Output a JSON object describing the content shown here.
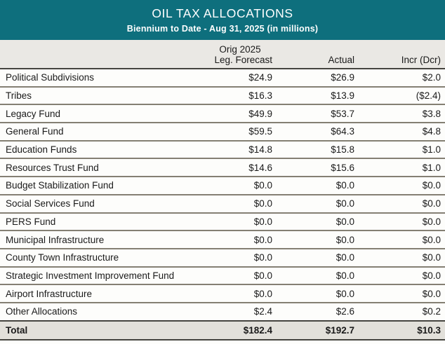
{
  "banner": {
    "title": "OIL TAX ALLOCATIONS",
    "subtitle": "Biennium to Date - Aug 31, 2025 (in millions)"
  },
  "table": {
    "column_group_header": "Orig 2025",
    "columns": {
      "forecast": "Leg. Forecast",
      "actual": "Actual",
      "incr": "Incr (Dcr)"
    },
    "rows": [
      {
        "label": "Political Subdivisions",
        "forecast": "$24.9",
        "actual": "$26.9",
        "incr": "$2.0"
      },
      {
        "label": "Tribes",
        "forecast": "$16.3",
        "actual": "$13.9",
        "incr": "($2.4)"
      },
      {
        "label": "Legacy Fund",
        "forecast": "$49.9",
        "actual": "$53.7",
        "incr": "$3.8"
      },
      {
        "label": "General Fund",
        "forecast": "$59.5",
        "actual": "$64.3",
        "incr": "$4.8"
      },
      {
        "label": "Education Funds",
        "forecast": "$14.8",
        "actual": "$15.8",
        "incr": "$1.0"
      },
      {
        "label": "Resources Trust Fund",
        "forecast": "$14.6",
        "actual": "$15.6",
        "incr": "$1.0"
      },
      {
        "label": "Budget Stabilization Fund",
        "forecast": "$0.0",
        "actual": "$0.0",
        "incr": "$0.0"
      },
      {
        "label": "Social Services Fund",
        "forecast": "$0.0",
        "actual": "$0.0",
        "incr": "$0.0"
      },
      {
        "label": "PERS Fund",
        "forecast": "$0.0",
        "actual": "$0.0",
        "incr": "$0.0"
      },
      {
        "label": "Municipal Infrastructure",
        "forecast": "$0.0",
        "actual": "$0.0",
        "incr": "$0.0"
      },
      {
        "label": "County Town Infrastructure",
        "forecast": "$0.0",
        "actual": "$0.0",
        "incr": "$0.0"
      },
      {
        "label": "Strategic Investment Improvement Fund",
        "forecast": "$0.0",
        "actual": "$0.0",
        "incr": "$0.0"
      },
      {
        "label": "Airport Infrastructure",
        "forecast": "$0.0",
        "actual": "$0.0",
        "incr": "$0.0"
      },
      {
        "label": "Other Allocations",
        "forecast": "$2.4",
        "actual": "$2.6",
        "incr": "$0.2"
      }
    ],
    "total": {
      "label": "Total",
      "forecast": "$182.4",
      "actual": "$192.7",
      "incr": "$10.3"
    }
  },
  "colors": {
    "banner_teal": "#0e6f7d",
    "header_bg": "#eae8e4",
    "total_bg": "#e2e0da",
    "dark_border": "#45443f",
    "row_separator": "#847f73"
  }
}
